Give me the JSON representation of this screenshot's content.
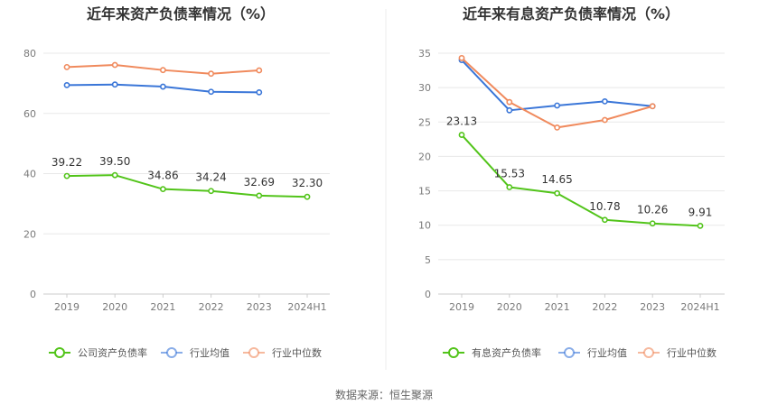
{
  "source_label": "数据来源：恒生聚源",
  "colors": {
    "company": "#52c41a",
    "industry_avg": "#3a76d8",
    "industry_median": "#f08a5d",
    "grid": "#e8e8e8",
    "axis": "#cccccc"
  },
  "chart_data": [
    {
      "type": "line",
      "title": "近年来资产负债率情况（%）",
      "categories": [
        "2019",
        "2020",
        "2021",
        "2022",
        "2023",
        "2024H1"
      ],
      "ylim": [
        0,
        80
      ],
      "yticks": [
        0,
        20,
        40,
        60,
        80
      ],
      "grid": true,
      "legend_position": "bottom",
      "series": [
        {
          "name": "公司资产负债率",
          "color_key": "company",
          "values": [
            39.22,
            39.5,
            34.86,
            34.24,
            32.69,
            32.3
          ],
          "labels": [
            "39.22",
            "39.50",
            "34.86",
            "34.24",
            "32.69",
            "32.30"
          ]
        },
        {
          "name": "行业均值",
          "color_key": "industry_avg",
          "values": [
            69.4,
            69.6,
            68.9,
            67.2,
            67.0,
            null
          ]
        },
        {
          "name": "行业中位数",
          "color_key": "industry_median",
          "values": [
            75.4,
            76.1,
            74.4,
            73.2,
            74.3,
            null
          ]
        }
      ]
    },
    {
      "type": "line",
      "title": "近年来有息资产负债率情况（%）",
      "categories": [
        "2019",
        "2020",
        "2021",
        "2022",
        "2023",
        "2024H1"
      ],
      "ylim": [
        0,
        35
      ],
      "yticks": [
        0,
        5,
        10,
        15,
        20,
        25,
        30,
        35
      ],
      "grid": true,
      "legend_position": "bottom",
      "series": [
        {
          "name": "有息资产负债率",
          "color_key": "company",
          "values": [
            23.13,
            15.53,
            14.65,
            10.78,
            10.26,
            9.91
          ],
          "labels": [
            "23.13",
            "15.53",
            "14.65",
            "10.78",
            "10.26",
            "9.91"
          ]
        },
        {
          "name": "行业均值",
          "color_key": "industry_avg",
          "values": [
            34.0,
            26.7,
            27.4,
            28.0,
            27.3,
            null
          ]
        },
        {
          "name": "行业中位数",
          "color_key": "industry_median",
          "values": [
            34.3,
            27.9,
            24.2,
            25.3,
            27.3,
            null
          ]
        }
      ]
    }
  ]
}
